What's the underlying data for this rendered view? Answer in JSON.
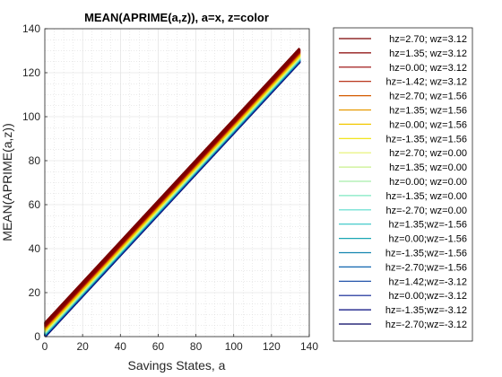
{
  "chart_data": {
    "type": "line",
    "title": "MEAN(APRIME(a,z)), a=x, z=color",
    "xlabel": "Savings States, a",
    "ylabel": "MEAN(APRIME(a,z))",
    "xlim": [
      0,
      140
    ],
    "ylim": [
      0,
      140
    ],
    "xticks": [
      "0",
      "20",
      "40",
      "60",
      "80",
      "100",
      "120",
      "140"
    ],
    "yticks": [
      "0",
      "20",
      "40",
      "60",
      "80",
      "100",
      "120",
      "140"
    ],
    "grid": "on",
    "minor_grid": "on",
    "legend_placement": "outside-right",
    "series": [
      {
        "name": "hz=2.70; wz=3.12",
        "color": "#7a0000",
        "x": [
          0,
          135
        ],
        "y": [
          6.0,
          131.0
        ]
      },
      {
        "name": "hz=1.35; wz=3.12",
        "color": "#880000",
        "x": [
          0,
          135
        ],
        "y": [
          5.5,
          130.5
        ]
      },
      {
        "name": "hz=0.00; wz=3.12",
        "color": "#960000",
        "x": [
          0,
          135
        ],
        "y": [
          5.0,
          130.0
        ]
      },
      {
        "name": "hz=-1.42; wz=3.12",
        "color": "#b01e00",
        "x": [
          0,
          135
        ],
        "y": [
          4.6,
          129.6
        ]
      },
      {
        "name": "hz=2.70; wz=1.56",
        "color": "#d45a00",
        "x": [
          0,
          135
        ],
        "y": [
          4.2,
          129.2
        ]
      },
      {
        "name": "hz=1.35; wz=1.56",
        "color": "#e69a00",
        "x": [
          0,
          135
        ],
        "y": [
          3.8,
          128.8
        ]
      },
      {
        "name": "hz=0.00; wz=1.56",
        "color": "#f2c800",
        "x": [
          0,
          135
        ],
        "y": [
          3.4,
          128.4
        ]
      },
      {
        "name": "hz=-1.35; wz=1.56",
        "color": "#f0e000",
        "x": [
          0,
          135
        ],
        "y": [
          3.0,
          128.0
        ]
      },
      {
        "name": "hz=2.70; wz=0.00",
        "color": "#e6f26e",
        "x": [
          0,
          135
        ],
        "y": [
          2.6,
          127.6
        ]
      },
      {
        "name": "hz=1.35; wz=0.00",
        "color": "#c8f08c",
        "x": [
          0,
          135
        ],
        "y": [
          2.3,
          127.3
        ]
      },
      {
        "name": "hz=0.00; wz=0.00",
        "color": "#a6eeaa",
        "x": [
          0,
          135
        ],
        "y": [
          2.0,
          127.0
        ]
      },
      {
        "name": "hz=-1.35; wz=0.00",
        "color": "#7ee8c2",
        "x": [
          0,
          135
        ],
        "y": [
          1.8,
          126.8
        ]
      },
      {
        "name": "hz=-2.70; wz=0.00",
        "color": "#58dccc",
        "x": [
          0,
          135
        ],
        "y": [
          1.6,
          126.6
        ]
      },
      {
        "name": "hz=1.35;wz=-1.56",
        "color": "#30c4c4",
        "x": [
          0,
          135
        ],
        "y": [
          1.4,
          126.4
        ]
      },
      {
        "name": "hz=0.00;wz=-1.56",
        "color": "#1aa6b4",
        "x": [
          0,
          135
        ],
        "y": [
          1.2,
          126.2
        ]
      },
      {
        "name": "hz=-1.35;wz=-1.56",
        "color": "#1486b0",
        "x": [
          0,
          135
        ],
        "y": [
          1.0,
          126.0
        ]
      },
      {
        "name": "hz=-2.70;wz=-1.56",
        "color": "#1066b0",
        "x": [
          0,
          135
        ],
        "y": [
          0.8,
          125.8
        ]
      },
      {
        "name": "hz=1.42;wz=-3.12",
        "color": "#0a40a0",
        "x": [
          0,
          135
        ],
        "y": [
          0.6,
          125.6
        ]
      },
      {
        "name": "hz=0.00;wz=-3.12",
        "color": "#061e90",
        "x": [
          0,
          135
        ],
        "y": [
          0.4,
          125.4
        ]
      },
      {
        "name": "hz=-1.35;wz=-3.12",
        "color": "#040a7e",
        "x": [
          0,
          135
        ],
        "y": [
          0.2,
          125.2
        ]
      },
      {
        "name": "hz=-2.70;wz=-3.12",
        "color": "#020060",
        "x": [
          0,
          135
        ],
        "y": [
          0.0,
          125.0
        ]
      }
    ]
  }
}
